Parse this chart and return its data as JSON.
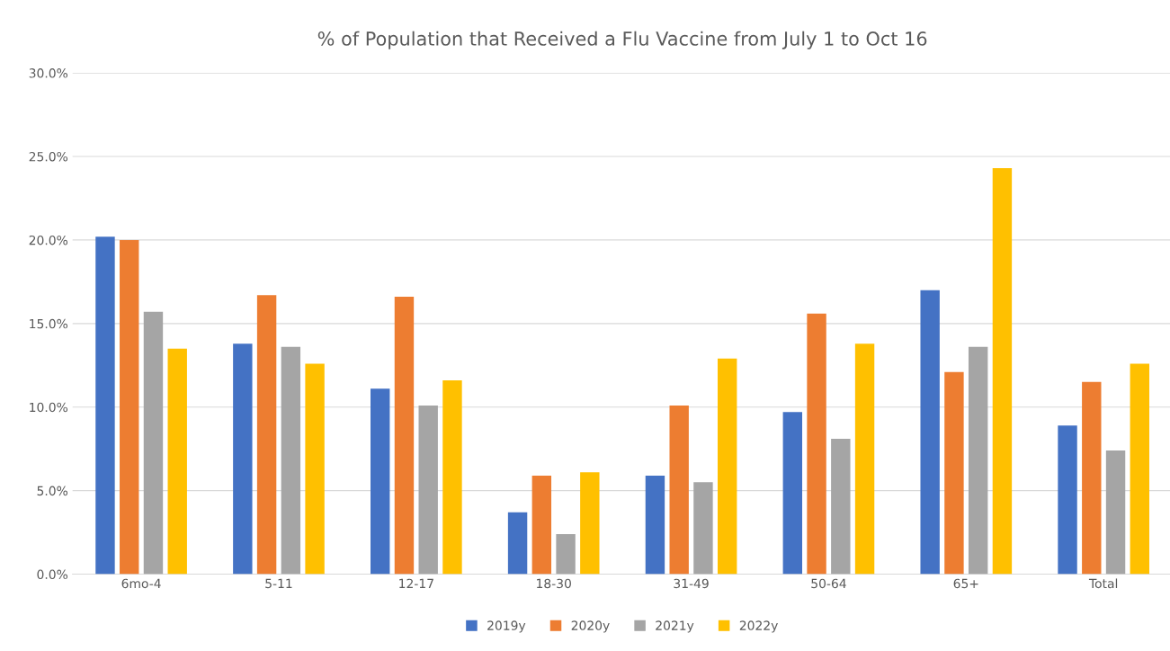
{
  "chart_data": {
    "type": "bar",
    "title": "% of Population that Received a Flu Vaccine from July 1 to Oct 16",
    "categories": [
      "6mo-4",
      "5-11",
      "12-17",
      "18-30",
      "31-49",
      "50-64",
      "65+",
      "Total"
    ],
    "series": [
      {
        "name": "2019y",
        "color": "#4472c4",
        "values": [
          20.2,
          13.8,
          11.1,
          3.7,
          5.9,
          9.7,
          17.0,
          8.9
        ]
      },
      {
        "name": "2020y",
        "color": "#ed7d31",
        "values": [
          20.0,
          16.7,
          16.6,
          5.9,
          10.1,
          15.6,
          12.1,
          11.5
        ]
      },
      {
        "name": "2021y",
        "color": "#a5a5a5",
        "values": [
          15.7,
          13.6,
          10.1,
          2.4,
          5.5,
          8.1,
          13.6,
          7.4
        ]
      },
      {
        "name": "2022y",
        "color": "#ffc000",
        "values": [
          13.5,
          12.6,
          11.6,
          6.1,
          12.9,
          13.8,
          24.3,
          12.6
        ]
      }
    ],
    "ylim": [
      0,
      30
    ],
    "yticks": [
      {
        "value": 0,
        "label": "0.0%"
      },
      {
        "value": 5,
        "label": "5.0%"
      },
      {
        "value": 10,
        "label": "10.0%"
      },
      {
        "value": 15,
        "label": "15.0%"
      },
      {
        "value": 20,
        "label": "20.0%"
      },
      {
        "value": 25,
        "label": "25.0%"
      },
      {
        "value": 30,
        "label": "30.0%"
      }
    ],
    "grid": "y",
    "legend": "bottom"
  }
}
